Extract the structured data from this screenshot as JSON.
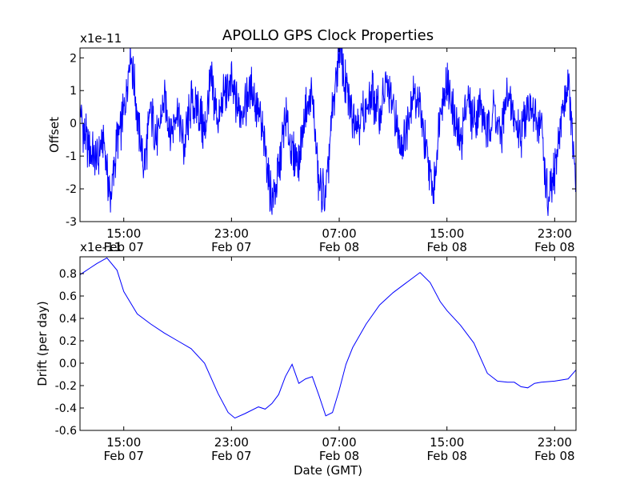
{
  "figure": {
    "title": "APOLLO GPS Clock Properties",
    "xlabel": "Date (GMT)"
  },
  "chart_data": [
    {
      "type": "line",
      "ylabel": "Offset",
      "y_multiplier": "x1e-11",
      "ylim": [
        -3,
        2.3
      ],
      "yticks": [
        -3,
        -2,
        -1,
        0,
        1,
        2
      ],
      "ytick_labels": [
        "-3",
        "-2",
        "-1",
        "0",
        "1",
        "2"
      ],
      "xlim": [
        "2014-02-07T11:45",
        "2014-02-09T00:35"
      ],
      "xticks": [
        "2014-02-07T15:00",
        "2014-02-07T23:00",
        "2014-02-08T07:00",
        "2014-02-08T15:00",
        "2014-02-08T23:00"
      ],
      "xtick_time_labels": [
        "15:00",
        "23:00",
        "07:00",
        "15:00",
        "23:00"
      ],
      "xtick_date_labels": [
        "Feb 07",
        "Feb 07",
        "Feb 08",
        "Feb 08",
        "Feb 08"
      ],
      "grid": false,
      "color": "#0000ff",
      "series": [
        {
          "x": [
            "2014-02-07T11:45",
            "2014-02-07T12:00",
            "2014-02-07T12:30",
            "2014-02-07T13:00",
            "2014-02-07T13:30",
            "2014-02-07T14:00",
            "2014-02-07T14:30",
            "2014-02-07T15:00",
            "2014-02-07T15:30",
            "2014-02-07T16:00",
            "2014-02-07T16:30",
            "2014-02-07T17:00",
            "2014-02-07T17:30",
            "2014-02-07T18:00",
            "2014-02-07T18:30",
            "2014-02-07T19:00",
            "2014-02-07T19:30",
            "2014-02-07T20:00",
            "2014-02-07T20:30",
            "2014-02-07T21:00",
            "2014-02-07T21:30",
            "2014-02-07T22:00",
            "2014-02-07T22:30",
            "2014-02-07T23:00",
            "2014-02-07T23:30",
            "2014-02-08T00:00",
            "2014-02-08T00:30",
            "2014-02-08T01:00",
            "2014-02-08T01:30",
            "2014-02-08T02:00",
            "2014-02-08T02:30",
            "2014-02-08T03:00",
            "2014-02-08T03:30",
            "2014-02-08T04:00",
            "2014-02-08T04:30",
            "2014-02-08T05:00",
            "2014-02-08T05:30",
            "2014-02-08T06:00",
            "2014-02-08T06:30",
            "2014-02-08T07:00",
            "2014-02-08T07:30",
            "2014-02-08T08:00",
            "2014-02-08T08:30",
            "2014-02-08T09:00",
            "2014-02-08T09:30",
            "2014-02-08T10:00",
            "2014-02-08T10:30",
            "2014-02-08T11:00",
            "2014-02-08T11:30",
            "2014-02-08T12:00",
            "2014-02-08T12:30",
            "2014-02-08T13:00",
            "2014-02-08T13:30",
            "2014-02-08T14:00",
            "2014-02-08T14:30",
            "2014-02-08T15:00",
            "2014-02-08T15:30",
            "2014-02-08T16:00",
            "2014-02-08T16:30",
            "2014-02-08T17:00",
            "2014-02-08T17:30",
            "2014-02-08T18:00",
            "2014-02-08T18:30",
            "2014-02-08T19:00",
            "2014-02-08T19:30",
            "2014-02-08T20:00",
            "2014-02-08T20:30",
            "2014-02-08T21:00",
            "2014-02-08T21:30",
            "2014-02-08T22:00",
            "2014-02-08T22:30",
            "2014-02-08T23:00",
            "2014-02-08T23:30",
            "2014-02-09T00:00",
            "2014-02-09T00:35"
          ],
          "y": [
            0.5,
            -0.3,
            -0.8,
            -1.2,
            -0.5,
            -2.4,
            -0.6,
            0.3,
            2.3,
            0.2,
            -1.4,
            0.4,
            -0.6,
            0.7,
            -0.2,
            0.4,
            -0.8,
            0.6,
            0.5,
            -0.3,
            1.3,
            0.1,
            0.9,
            1.2,
            0.4,
            0.6,
            1.1,
            0.3,
            -0.7,
            -2.4,
            -1.5,
            0.2,
            -0.9,
            -1.2,
            0.4,
            0.8,
            -1.9,
            -2.2,
            0.3,
            2.3,
            1.0,
            0.3,
            0.1,
            0.4,
            0.9,
            0.2,
            1.2,
            0.5,
            -0.7,
            -0.2,
            1.0,
            0.4,
            -1.0,
            -2.2,
            0.5,
            1.2,
            0.3,
            -0.7,
            0.8,
            0.1,
            0.6,
            -0.3,
            0.5,
            -0.5,
            0.9,
            0.2,
            -0.3,
            0.7,
            0.1,
            -0.1,
            -2.5,
            -1.5,
            0.2,
            1.3,
            -2.0
          ]
        }
      ]
    },
    {
      "type": "line",
      "ylabel": "Drift (per day)",
      "y_multiplier": "x1e-11",
      "ylim": [
        -0.6,
        0.95
      ],
      "yticks": [
        -0.6,
        -0.4,
        -0.2,
        0.0,
        0.2,
        0.4,
        0.6,
        0.8
      ],
      "ytick_labels": [
        "-0.6",
        "-0.4",
        "-0.2",
        "0.0",
        "0.2",
        "0.4",
        "0.6",
        "0.8"
      ],
      "xlim": [
        "2014-02-07T11:45",
        "2014-02-09T00:35"
      ],
      "xticks": [
        "2014-02-07T15:00",
        "2014-02-07T23:00",
        "2014-02-08T07:00",
        "2014-02-08T15:00",
        "2014-02-08T23:00"
      ],
      "xtick_time_labels": [
        "15:00",
        "23:00",
        "07:00",
        "15:00",
        "23:00"
      ],
      "xtick_date_labels": [
        "Feb 07",
        "Feb 07",
        "Feb 08",
        "Feb 08",
        "Feb 08"
      ],
      "grid": false,
      "color": "#0000ff",
      "series": [
        {
          "x": [
            "2014-02-07T11:45",
            "2014-02-07T12:30",
            "2014-02-07T13:00",
            "2014-02-07T13:45",
            "2014-02-07T14:30",
            "2014-02-07T15:00",
            "2014-02-07T16:00",
            "2014-02-07T17:00",
            "2014-02-07T18:00",
            "2014-02-07T19:00",
            "2014-02-07T20:00",
            "2014-02-07T21:00",
            "2014-02-07T22:00",
            "2014-02-07T22:45",
            "2014-02-07T23:15",
            "2014-02-08T00:00",
            "2014-02-08T01:00",
            "2014-02-08T01:30",
            "2014-02-08T02:00",
            "2014-02-08T02:30",
            "2014-02-08T03:00",
            "2014-02-08T03:30",
            "2014-02-08T04:00",
            "2014-02-08T04:30",
            "2014-02-08T05:00",
            "2014-02-08T05:30",
            "2014-02-08T06:00",
            "2014-02-08T06:30",
            "2014-02-08T07:00",
            "2014-02-08T07:30",
            "2014-02-08T08:00",
            "2014-02-08T09:00",
            "2014-02-08T10:00",
            "2014-02-08T11:00",
            "2014-02-08T12:00",
            "2014-02-08T13:00",
            "2014-02-08T13:45",
            "2014-02-08T14:30",
            "2014-02-08T15:00",
            "2014-02-08T16:00",
            "2014-02-08T17:00",
            "2014-02-08T18:00",
            "2014-02-08T18:45",
            "2014-02-08T19:30",
            "2014-02-08T20:00",
            "2014-02-08T20:30",
            "2014-02-08T21:00",
            "2014-02-08T21:30",
            "2014-02-08T22:00",
            "2014-02-08T23:00",
            "2014-02-09T00:00",
            "2014-02-09T00:35"
          ],
          "y": [
            0.79,
            0.85,
            0.89,
            0.94,
            0.83,
            0.64,
            0.44,
            0.35,
            0.27,
            0.2,
            0.13,
            0.0,
            -0.27,
            -0.44,
            -0.49,
            -0.45,
            -0.39,
            -0.41,
            -0.36,
            -0.28,
            -0.12,
            -0.01,
            -0.18,
            -0.14,
            -0.12,
            -0.29,
            -0.47,
            -0.44,
            -0.24,
            -0.01,
            0.14,
            0.35,
            0.52,
            0.63,
            0.72,
            0.81,
            0.72,
            0.55,
            0.47,
            0.34,
            0.18,
            -0.09,
            -0.16,
            -0.17,
            -0.17,
            -0.21,
            -0.22,
            -0.18,
            -0.17,
            -0.16,
            -0.14,
            -0.06
          ]
        }
      ]
    }
  ]
}
